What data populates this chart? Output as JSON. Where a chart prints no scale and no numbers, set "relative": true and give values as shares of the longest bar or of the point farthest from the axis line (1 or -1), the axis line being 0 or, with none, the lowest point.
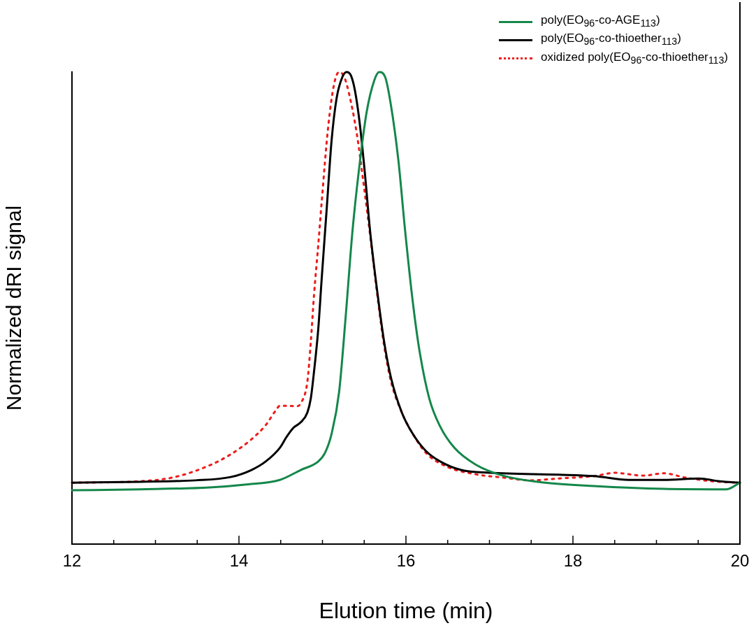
{
  "chart_data": {
    "type": "line",
    "relative": true,
    "xlabel": "Elution time (min)",
    "ylabel": "Normalized dRI signal",
    "xlim": [
      12,
      20
    ],
    "xticks": [
      12,
      {
        "value": 12.5,
        "label": null
      },
      {
        "value": 13,
        "label": null
      },
      {
        "value": 13.5,
        "label": null
      },
      14,
      {
        "value": 14.5,
        "label": null
      },
      {
        "value": 15,
        "label": null
      },
      {
        "value": 15.5,
        "label": null
      },
      16,
      {
        "value": 16.5,
        "label": null
      },
      {
        "value": 17,
        "label": null
      },
      {
        "value": 17.5,
        "label": null
      },
      18,
      {
        "value": 18.5,
        "label": null
      },
      {
        "value": 19,
        "label": null
      },
      {
        "value": 19.5,
        "label": null
      },
      20
    ],
    "legend": "top right",
    "marker": "none",
    "grid": false,
    "series": [
      {
        "name": "poly(EO$_{96}$-co-AGE$_{113}$)",
        "color": "#14874a",
        "line_style": "solid",
        "x": [
          12.0,
          12.81,
          13.65,
          14.07,
          14.49,
          14.74,
          14.95,
          15.03,
          15.11,
          15.2,
          15.28,
          15.36,
          15.45,
          15.53,
          15.62,
          15.68,
          15.75,
          15.82,
          15.91,
          15.99,
          16.08,
          16.16,
          16.28,
          16.41,
          16.58,
          16.83,
          17.16,
          17.67,
          18.25,
          19.09,
          19.84,
          20.0
        ],
        "values": [
          0.114,
          0.116,
          0.12,
          0.126,
          0.136,
          0.157,
          0.175,
          0.193,
          0.234,
          0.323,
          0.486,
          0.664,
          0.812,
          0.916,
          0.982,
          1.0,
          0.99,
          0.93,
          0.812,
          0.664,
          0.516,
          0.412,
          0.308,
          0.249,
          0.204,
          0.169,
          0.145,
          0.13,
          0.123,
          0.117,
          0.116,
          0.13
        ]
      },
      {
        "name": "poly(EO$_{96}$-co-thioether$_{113}$)",
        "color": "#000000",
        "line_style": "solid",
        "x": [
          12.0,
          12.81,
          13.48,
          13.9,
          14.15,
          14.32,
          14.49,
          14.57,
          14.65,
          14.74,
          14.82,
          14.86,
          14.9,
          14.95,
          14.99,
          15.05,
          15.11,
          15.17,
          15.24,
          15.29,
          15.34,
          15.39,
          15.45,
          15.51,
          15.57,
          15.66,
          15.74,
          15.82,
          15.95,
          16.08,
          16.24,
          16.41,
          16.66,
          17.0,
          17.83,
          18.25,
          18.67,
          19.09,
          19.51,
          19.76,
          20.0
        ],
        "values": [
          0.13,
          0.132,
          0.135,
          0.142,
          0.157,
          0.175,
          0.204,
          0.227,
          0.246,
          0.258,
          0.279,
          0.308,
          0.367,
          0.456,
          0.56,
          0.708,
          0.856,
          0.945,
          0.99,
          1.0,
          0.993,
          0.96,
          0.886,
          0.782,
          0.664,
          0.53,
          0.427,
          0.353,
          0.279,
          0.234,
          0.197,
          0.175,
          0.157,
          0.151,
          0.147,
          0.144,
          0.136,
          0.136,
          0.139,
          0.133,
          0.13
        ]
      },
      {
        "name": "oxidized poly(EO$_{96}$-co-thioether$_{113}$)",
        "color": "#ee1c1c",
        "line_style": "dotted",
        "x": [
          12.0,
          12.81,
          13.23,
          13.65,
          13.9,
          14.15,
          14.32,
          14.44,
          14.49,
          14.57,
          14.69,
          14.75,
          14.82,
          14.86,
          14.9,
          14.95,
          14.99,
          15.07,
          15.14,
          15.2,
          15.26,
          15.32,
          15.41,
          15.49,
          15.57,
          15.66,
          15.74,
          15.82,
          15.95,
          16.08,
          16.24,
          16.49,
          16.83,
          17.16,
          17.5,
          17.83,
          18.25,
          18.5,
          18.84,
          19.09,
          19.34,
          19.67,
          20.0
        ],
        "values": [
          0.13,
          0.133,
          0.142,
          0.167,
          0.19,
          0.222,
          0.252,
          0.283,
          0.293,
          0.293,
          0.292,
          0.301,
          0.345,
          0.427,
          0.53,
          0.634,
          0.723,
          0.886,
          0.975,
          1.0,
          0.99,
          0.953,
          0.871,
          0.767,
          0.656,
          0.523,
          0.419,
          0.345,
          0.279,
          0.234,
          0.193,
          0.164,
          0.148,
          0.141,
          0.135,
          0.139,
          0.144,
          0.151,
          0.145,
          0.15,
          0.141,
          0.133,
          0.13
        ]
      }
    ]
  }
}
